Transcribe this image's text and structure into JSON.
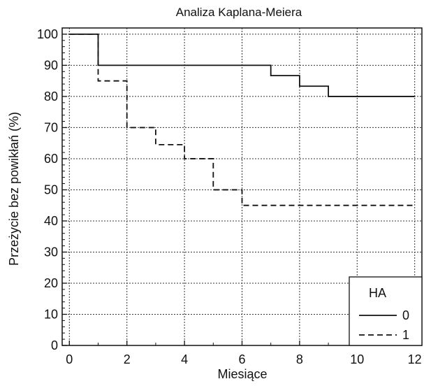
{
  "chart_data": {
    "type": "line",
    "step": true,
    "title": "Analiza Kaplana-Meiera",
    "xlabel": "Miesiące",
    "ylabel": "Przeżycie bez powikłań (%)",
    "xlim": [
      -0.25,
      12.25
    ],
    "ylim": [
      0,
      102
    ],
    "x_ticks": [
      0,
      2,
      4,
      6,
      8,
      10,
      12
    ],
    "y_ticks": [
      0,
      10,
      20,
      30,
      40,
      50,
      60,
      70,
      80,
      90,
      100
    ],
    "grid": true,
    "legend": {
      "title": "HA",
      "position": "bottom-right"
    },
    "series": [
      {
        "name": "0",
        "style": "solid",
        "color": "#111111",
        "x": [
          0,
          1,
          7,
          8,
          9,
          12
        ],
        "y": [
          100,
          90,
          86.7,
          83.3,
          80,
          80
        ]
      },
      {
        "name": "1",
        "style": "dashed",
        "color": "#111111",
        "x": [
          0,
          1,
          2,
          3,
          4,
          5,
          6,
          12
        ],
        "y": [
          100,
          85,
          70,
          64.5,
          60,
          50,
          45,
          45
        ]
      }
    ]
  }
}
